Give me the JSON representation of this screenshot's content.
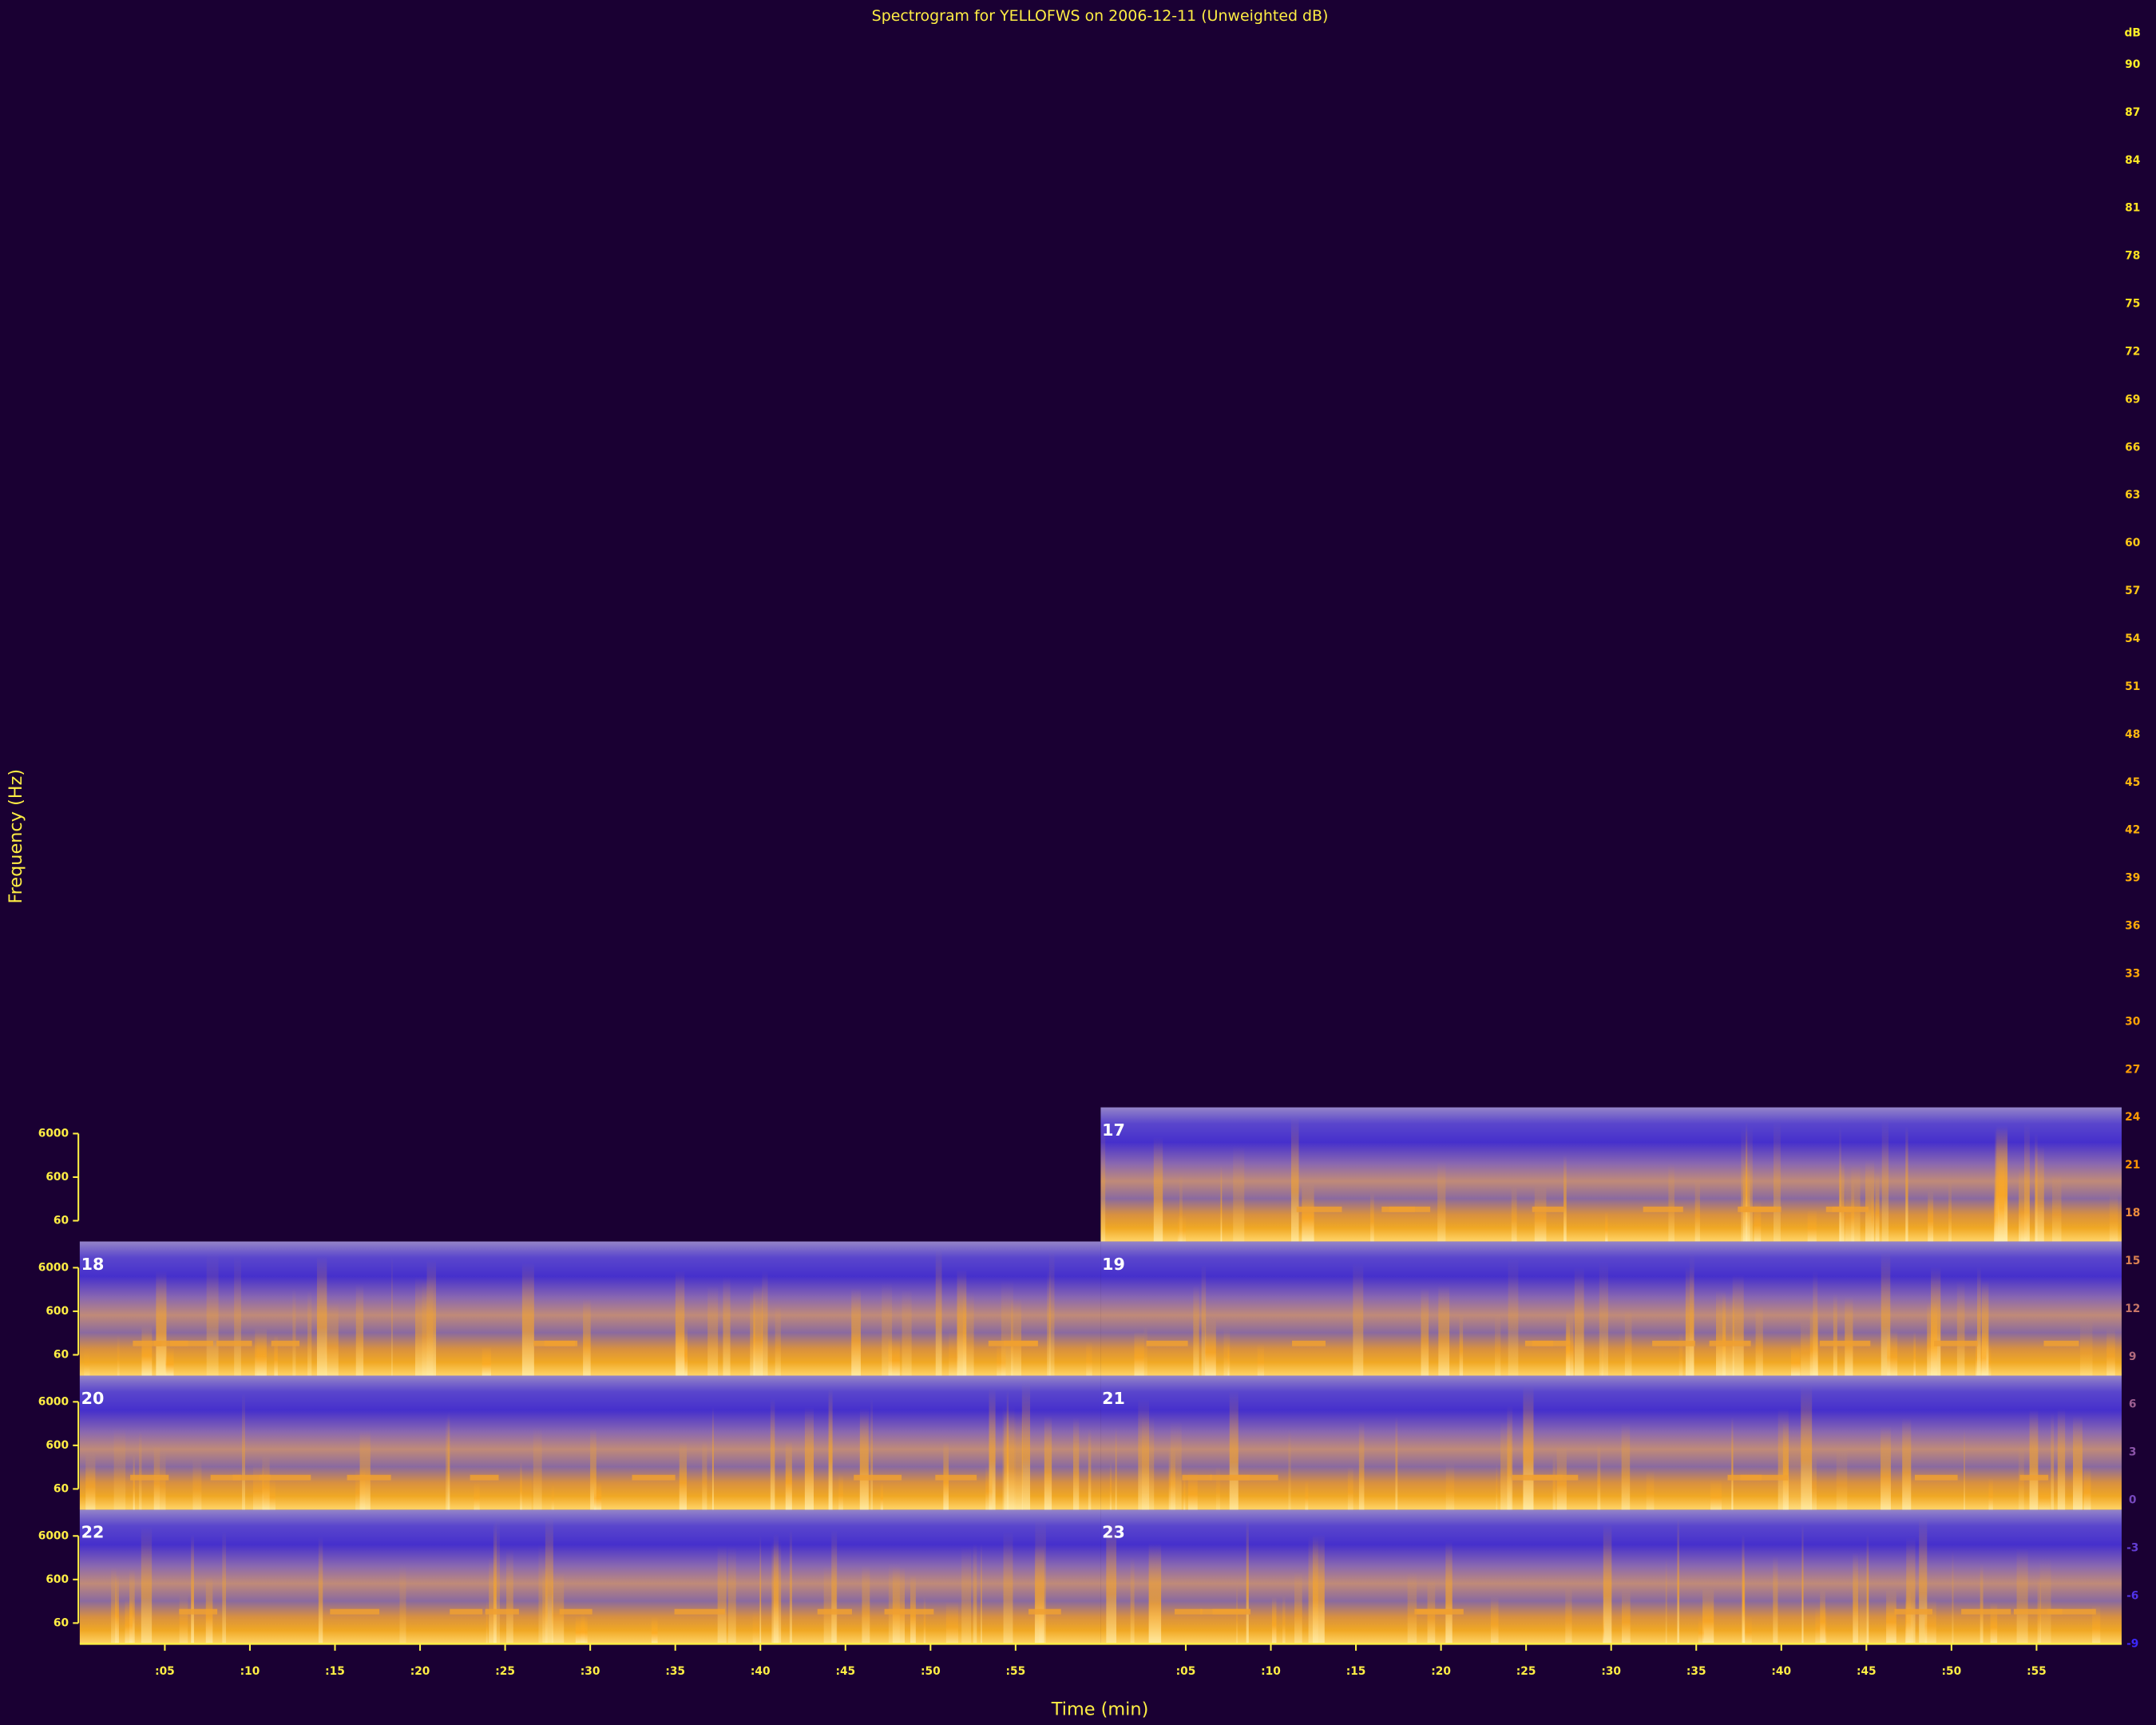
{
  "chart_data": {
    "type": "spectrogram",
    "title": "Spectrogram for YELLOFWS on 2006-12-11 (Unweighted dB)",
    "xlabel": "Time (min)",
    "ylabel": "Frequency (Hz)",
    "panels": [
      "17",
      "18",
      "19",
      "20",
      "21",
      "22",
      "23"
    ],
    "log_y": true,
    "ylim": [
      20,
      24000
    ],
    "yticks": [
      6000,
      600,
      60
    ],
    "xlim": [
      0,
      60
    ],
    "xticks": [
      {
        "value": 5,
        "label": ":05"
      },
      {
        "value": 10,
        "label": ":10"
      },
      {
        "value": 15,
        "label": ":15"
      },
      {
        "value": 20,
        "label": ":20"
      },
      {
        "value": 25,
        "label": ":25"
      },
      {
        "value": 30,
        "label": ":30"
      },
      {
        "value": 35,
        "label": ":35"
      },
      {
        "value": 40,
        "label": ":40"
      },
      {
        "value": 45,
        "label": ":45"
      },
      {
        "value": 50,
        "label": ":50"
      },
      {
        "value": 55,
        "label": ":55"
      }
    ],
    "colorbar": {
      "label": "dB",
      "lim": [
        -9,
        90
      ],
      "ticks": [
        90,
        87,
        84,
        81,
        78,
        75,
        72,
        69,
        66,
        63,
        60,
        57,
        54,
        51,
        48,
        45,
        42,
        39,
        36,
        33,
        30,
        27,
        24,
        21,
        18,
        15,
        12,
        9,
        6,
        3,
        0,
        -3,
        -6,
        -9
      ]
    }
  }
}
